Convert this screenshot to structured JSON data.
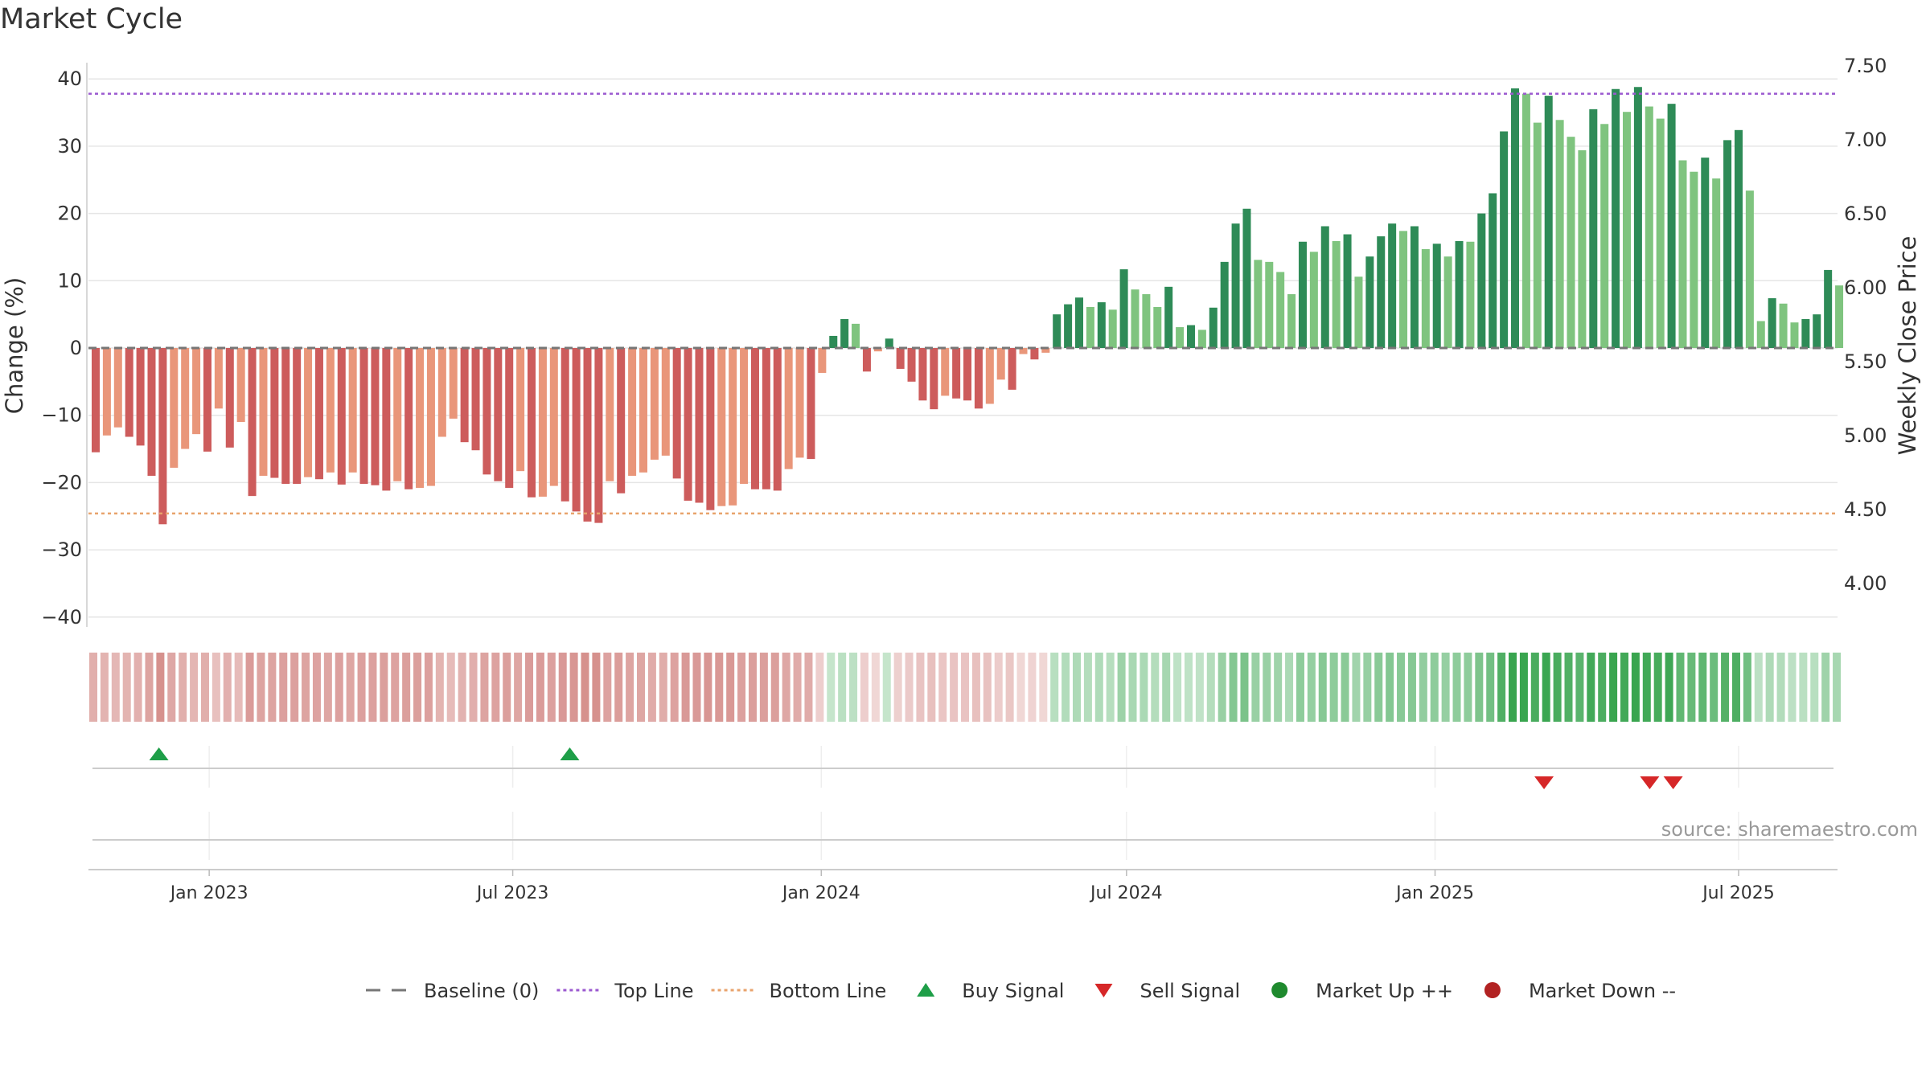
{
  "chart_data": {
    "type": "bar",
    "title": "Market Cycle",
    "ylabel": "Change (%)",
    "y2label": "Weekly Close Price",
    "ylim": [
      -42,
      42
    ],
    "y_ticks": [
      40,
      30,
      20,
      10,
      0,
      -10,
      -20,
      -30,
      -40
    ],
    "y_tick_labels": [
      "40",
      "30",
      "20",
      "10",
      "0",
      "−10",
      "−20",
      "−30",
      "−40"
    ],
    "y2lim": [
      3.75,
      7.55
    ],
    "y2_ticks": [
      "7.50",
      "7.00",
      "6.50",
      "6.00",
      "5.50",
      "5.00",
      "4.50",
      "4.00"
    ],
    "x_range": [
      "2022-10-21",
      "2025-08-29"
    ],
    "x_ticks": [
      {
        "label": "Jan 2023",
        "date": "2023-01-01"
      },
      {
        "label": "Jul 2023",
        "date": "2023-07-01"
      },
      {
        "label": "Jan 2024",
        "date": "2024-01-01"
      },
      {
        "label": "Jul 2024",
        "date": "2024-07-01"
      },
      {
        "label": "Jan 2025",
        "date": "2025-01-01"
      },
      {
        "label": "Jul 2025",
        "date": "2025-07-01"
      }
    ],
    "baseline": 0,
    "top_line": 37.8,
    "bottom_line": -24.6,
    "weekly_start": "2022-10-21",
    "weekly_change": [
      -15.5,
      -13,
      -11.8,
      -13.2,
      -14.5,
      -19,
      -26.2,
      -17.8,
      -15,
      -12.8,
      -15.4,
      -9,
      -14.8,
      -11,
      -22,
      -19,
      -19.3,
      -20.2,
      -20.2,
      -19.2,
      -19.5,
      -18.5,
      -20.3,
      -18.5,
      -20.2,
      -20.4,
      -21.2,
      -19.8,
      -21,
      -20.8,
      -20.5,
      -13.2,
      -10.5,
      -14,
      -15.2,
      -18.8,
      -19.8,
      -20.8,
      -18.3,
      -22.2,
      -22.1,
      -20.5,
      -22.8,
      -24.3,
      -25.8,
      -26,
      -19.8,
      -21.6,
      -19,
      -18.5,
      -16.6,
      -16,
      -19.4,
      -22.7,
      -23,
      -24.1,
      -23.5,
      -23.4,
      -20.2,
      -21,
      -21,
      -21.2,
      -18,
      -16.3,
      -16.5,
      -3.7,
      1.8,
      4.3,
      3.6,
      -3.5,
      -0.5,
      1.4,
      -3.1,
      -5,
      -7.8,
      -9.1,
      -7.1,
      -7.5,
      -7.8,
      -9,
      -8.3,
      -4.7,
      -6.2,
      -0.9,
      -1.7,
      -0.7,
      5,
      6.5,
      7.5,
      6.1,
      6.8,
      5.7,
      11.7,
      8.7,
      8,
      6.1,
      9.1,
      3.1,
      3.4,
      2.7,
      6,
      12.8,
      18.5,
      20.7,
      13.1,
      12.8,
      11.3,
      8,
      15.8,
      14.3,
      18.1,
      15.9,
      16.9,
      10.6,
      13.6,
      16.6,
      18.5,
      17.4,
      18.1,
      14.7,
      15.5,
      13.6,
      15.9,
      15.8,
      20,
      23,
      32.2,
      38.6,
      37.8,
      33.5,
      37.5,
      33.9,
      31.4,
      29.4,
      35.5,
      33.3,
      38.5,
      35.1,
      38.8,
      35.9,
      34.1,
      36.3,
      27.9,
      26.2,
      28.3,
      25.2,
      30.9,
      32.4,
      23.4,
      4,
      7.4,
      6.6,
      3.8,
      4.3,
      5,
      11.6,
      9.3
    ],
    "buy_signals": [
      "2022-12-02",
      "2023-08-04"
    ],
    "sell_signals": [
      "2025-03-07",
      "2025-05-09",
      "2025-05-23"
    ],
    "legend": {
      "position": "bottom",
      "items": [
        {
          "label": "Baseline (0)",
          "symbol": "dash",
          "color": "#777777"
        },
        {
          "label": "Top Line",
          "symbol": "dot-line",
          "color": "#9b59d0"
        },
        {
          "label": "Bottom Line",
          "symbol": "dot-line",
          "color": "#e8a36c"
        },
        {
          "label": "Buy Signal",
          "symbol": "triangle-up",
          "color": "#1e9e48"
        },
        {
          "label": "Sell Signal",
          "symbol": "triangle-down",
          "color": "#d62728"
        },
        {
          "label": "Market Up ++",
          "symbol": "circle",
          "color": "#1f8a2e"
        },
        {
          "label": "Market Down --",
          "symbol": "circle",
          "color": "#b22222"
        }
      ]
    },
    "grid": true,
    "colors": {
      "down_strong": "#cd5c5c",
      "down_light": "#e9967a",
      "up_strong": "#2e8b57",
      "up_light": "#7fc47f",
      "top_line": "#9b59d0",
      "bottom_line": "#e8a36c",
      "baseline": "#777777",
      "buy": "#1e9e48",
      "sell": "#d62728"
    }
  },
  "source_text": "source: sharemaestro.com"
}
